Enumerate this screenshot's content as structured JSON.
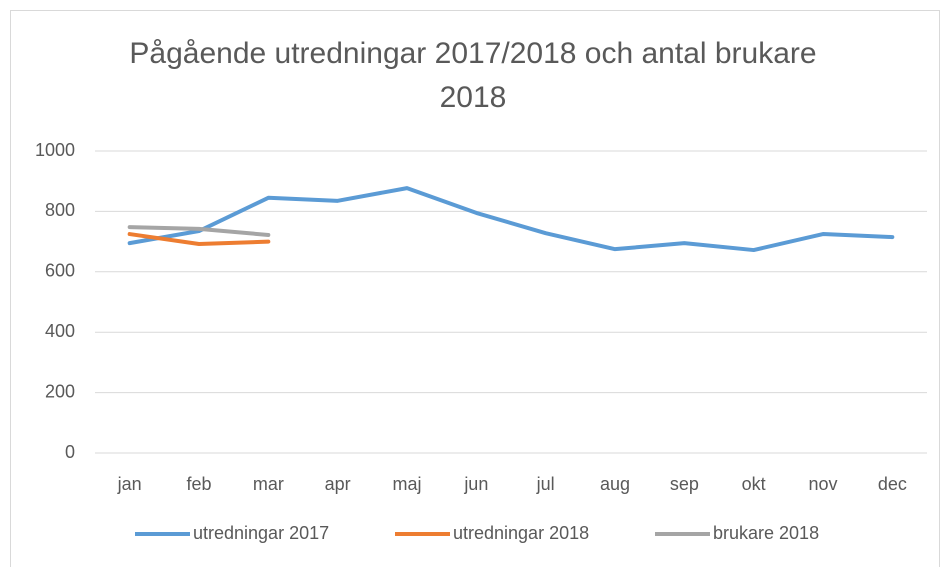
{
  "chart_data": {
    "type": "line",
    "title": "Pågående utredningar 2017/2018 och antal brukare 2018",
    "categories": [
      "jan",
      "feb",
      "mar",
      "apr",
      "maj",
      "jun",
      "jul",
      "aug",
      "sep",
      "okt",
      "nov",
      "dec"
    ],
    "series": [
      {
        "name": "utredningar 2017",
        "color": "#5b9bd5",
        "values": [
          695,
          735,
          845,
          835,
          877,
          795,
          728,
          675,
          695,
          672,
          725,
          715
        ]
      },
      {
        "name": "utredningar 2018",
        "color": "#ed7d31",
        "values": [
          725,
          692,
          700,
          null,
          null,
          null,
          null,
          null,
          null,
          null,
          null,
          null
        ]
      },
      {
        "name": "brukare 2018",
        "color": "#a5a5a5",
        "values": [
          748,
          742,
          722,
          null,
          null,
          null,
          null,
          null,
          null,
          null,
          null,
          null
        ]
      }
    ],
    "ylim": [
      0,
      1000
    ],
    "yticks": [
      0,
      200,
      400,
      600,
      800,
      1000
    ],
    "grid": true,
    "legend": "bottom"
  }
}
